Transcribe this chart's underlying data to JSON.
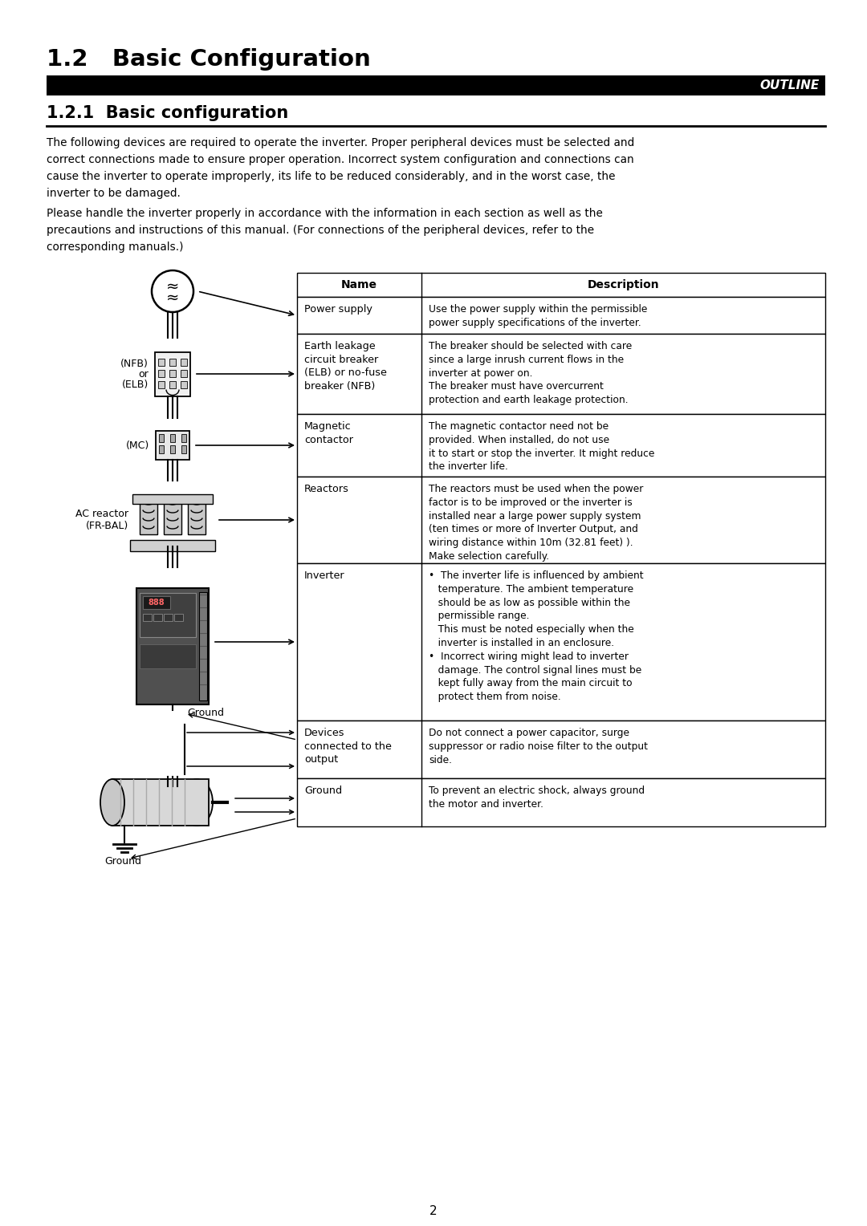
{
  "title": "1.2   Basic Configuration",
  "outline_text": "OUTLINE",
  "subtitle": "1.2.1  Basic configuration",
  "body_text1_lines": [
    "The following devices are required to operate the inverter. Proper peripheral devices must be selected and",
    "correct connections made to ensure proper operation. Incorrect system configuration and connections can",
    "cause the inverter to operate improperly, its life to be reduced considerably, and in the worst case, the",
    "inverter to be damaged."
  ],
  "body_text2_lines": [
    "Please handle the inverter properly in accordance with the information in each section as well as the",
    "precautions and instructions of this manual. (For connections of the peripheral devices, refer to the",
    "corresponding manuals.)"
  ],
  "table_col1_header": "Name",
  "table_col2_header": "Description",
  "table_rows": [
    {
      "name": "Power supply",
      "desc": "Use the power supply within the permissible\npower supply specifications of the inverter."
    },
    {
      "name": "Earth leakage\ncircuit breaker\n(ELB) or no-fuse\nbreaker (NFB)",
      "desc": "The breaker should be selected with care\nsince a large inrush current flows in the\ninverter at power on.\nThe breaker must have overcurrent\nprotection and earth leakage protection."
    },
    {
      "name": "Magnetic\ncontactor",
      "desc": "The magnetic contactor need not be\nprovided. When installed, do not use\nit to start or stop the inverter. It might reduce\nthe inverter life."
    },
    {
      "name": "Reactors",
      "desc": "The reactors must be used when the power\nfactor is to be improved or the inverter is\ninstalled near a large power supply system\n(ten times or more of Inverter Output, and\nwiring distance within 10m (32.81 feet) ).\nMake selection carefully."
    },
    {
      "name": "Inverter",
      "desc": "•  The inverter life is influenced by ambient\n   temperature. The ambient temperature\n   should be as low as possible within the\n   permissible range.\n   This must be noted especially when the\n   inverter is installed in an enclosure.\n•  Incorrect wiring might lead to inverter\n   damage. The control signal lines must be\n   kept fully away from the main circuit to\n   protect them from noise."
    },
    {
      "name": "Devices\nconnected to the\noutput",
      "desc": "Do not connect a power capacitor, surge\nsuppressor or radio noise filter to the output\nside."
    },
    {
      "name": "Ground",
      "desc": "To prevent an electric shock, always ground\nthe motor and inverter."
    }
  ],
  "page_number": "2",
  "nfb_label1": "(NFB)",
  "nfb_label2": "or",
  "nfb_label3": "(ELB)",
  "mc_label": "(MC)",
  "ac_reactor_label1": "AC reactor",
  "ac_reactor_label2": "(FR-BAL)",
  "ground_label1": "Ground",
  "ground_label2": "Ground"
}
